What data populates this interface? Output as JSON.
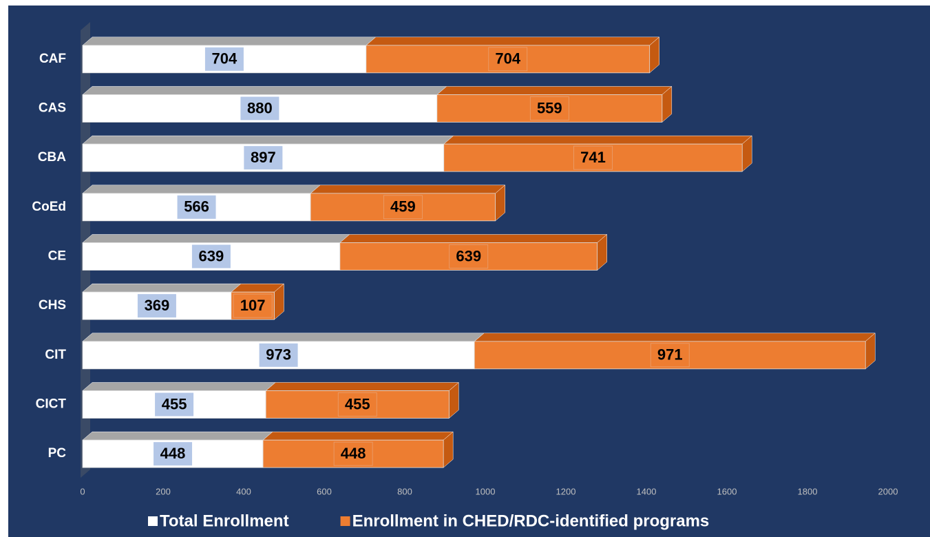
{
  "chart_data": {
    "type": "bar",
    "orientation": "horizontal",
    "stacked": true,
    "categories": [
      "CAF",
      "CAS",
      "CBA",
      "CoEd",
      "CE",
      "CHS",
      "CIT",
      "CICT",
      "PC"
    ],
    "series": [
      {
        "name": "Total Enrollment",
        "color": "#ffffff",
        "values": [
          704,
          880,
          897,
          566,
          639,
          369,
          973,
          455,
          448
        ]
      },
      {
        "name": "Enrollment in CHED/RDC-identified programs",
        "color": "#ed7d31",
        "values": [
          704,
          559,
          741,
          459,
          639,
          107,
          971,
          455,
          448
        ]
      }
    ],
    "xlim": [
      0,
      2000
    ],
    "xticks": [
      0,
      200,
      400,
      600,
      800,
      1000,
      1200,
      1400,
      1600,
      1800,
      2000
    ],
    "legend": "bottom"
  }
}
